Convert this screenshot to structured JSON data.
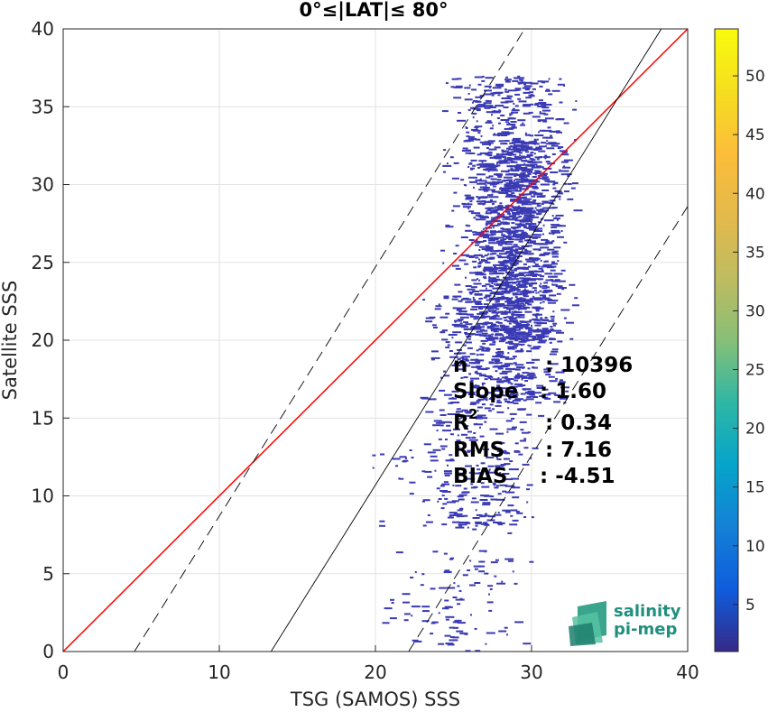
{
  "chart_data": {
    "type": "heatmap",
    "title": "0°≤|LAT|≤ 80°",
    "xlabel": "TSG (SAMOS) SSS",
    "ylabel": "Satellite SSS",
    "xlim": [
      0,
      40
    ],
    "ylim": [
      0,
      40
    ],
    "xticks": [
      "0",
      "10",
      "20",
      "30",
      "40"
    ],
    "yticks": [
      "0",
      "5",
      "10",
      "15",
      "20",
      "25",
      "30",
      "35",
      "40"
    ],
    "grid": true,
    "colorbar": {
      "range": [
        1,
        54
      ],
      "ticks": [
        "5",
        "10",
        "15",
        "20",
        "25",
        "30",
        "35",
        "40",
        "45",
        "50"
      ],
      "colormap": "parula"
    },
    "reference_lines": [
      {
        "name": "1:1",
        "color": "#ff0000",
        "style": "solid",
        "slope": 1.0,
        "intercept": 0
      },
      {
        "name": "fit",
        "color": "#000000",
        "style": "solid",
        "slope": 1.6,
        "intercept": -21.3
      },
      {
        "name": "upper bound",
        "color": "#000000",
        "style": "dashed",
        "slope": 1.6,
        "intercept": -7.3
      },
      {
        "name": "lower bound",
        "color": "#000000",
        "style": "dashed",
        "slope": 1.6,
        "intercept": -35.4
      }
    ],
    "stats": [
      {
        "label": "n",
        "value": ": 10396"
      },
      {
        "label": "Slope",
        "value": ": 1.60"
      },
      {
        "label": "R",
        "sup": "2",
        "value": ": 0.34"
      },
      {
        "label": "RMS",
        "value": ": 7.16"
      },
      {
        "label": "BIAS",
        "value": ": -4.51"
      }
    ],
    "density_bins": {
      "color": "#3a3ab4",
      "clusters": [
        {
          "x": [
            24.0,
            33.0
          ],
          "y": [
            16.0,
            37.0
          ],
          "count": 1100
        },
        {
          "x": [
            25.5,
            32.0
          ],
          "y": [
            20.0,
            33.0
          ],
          "count": 900
        },
        {
          "x": [
            22.5,
            30.5
          ],
          "y": [
            8.0,
            23.0
          ],
          "count": 380
        },
        {
          "x": [
            19.0,
            31.0
          ],
          "y": [
            0.0,
            13.0
          ],
          "count": 170
        }
      ]
    }
  },
  "logo": {
    "line1": "salinity",
    "line2": "pi-mep"
  }
}
